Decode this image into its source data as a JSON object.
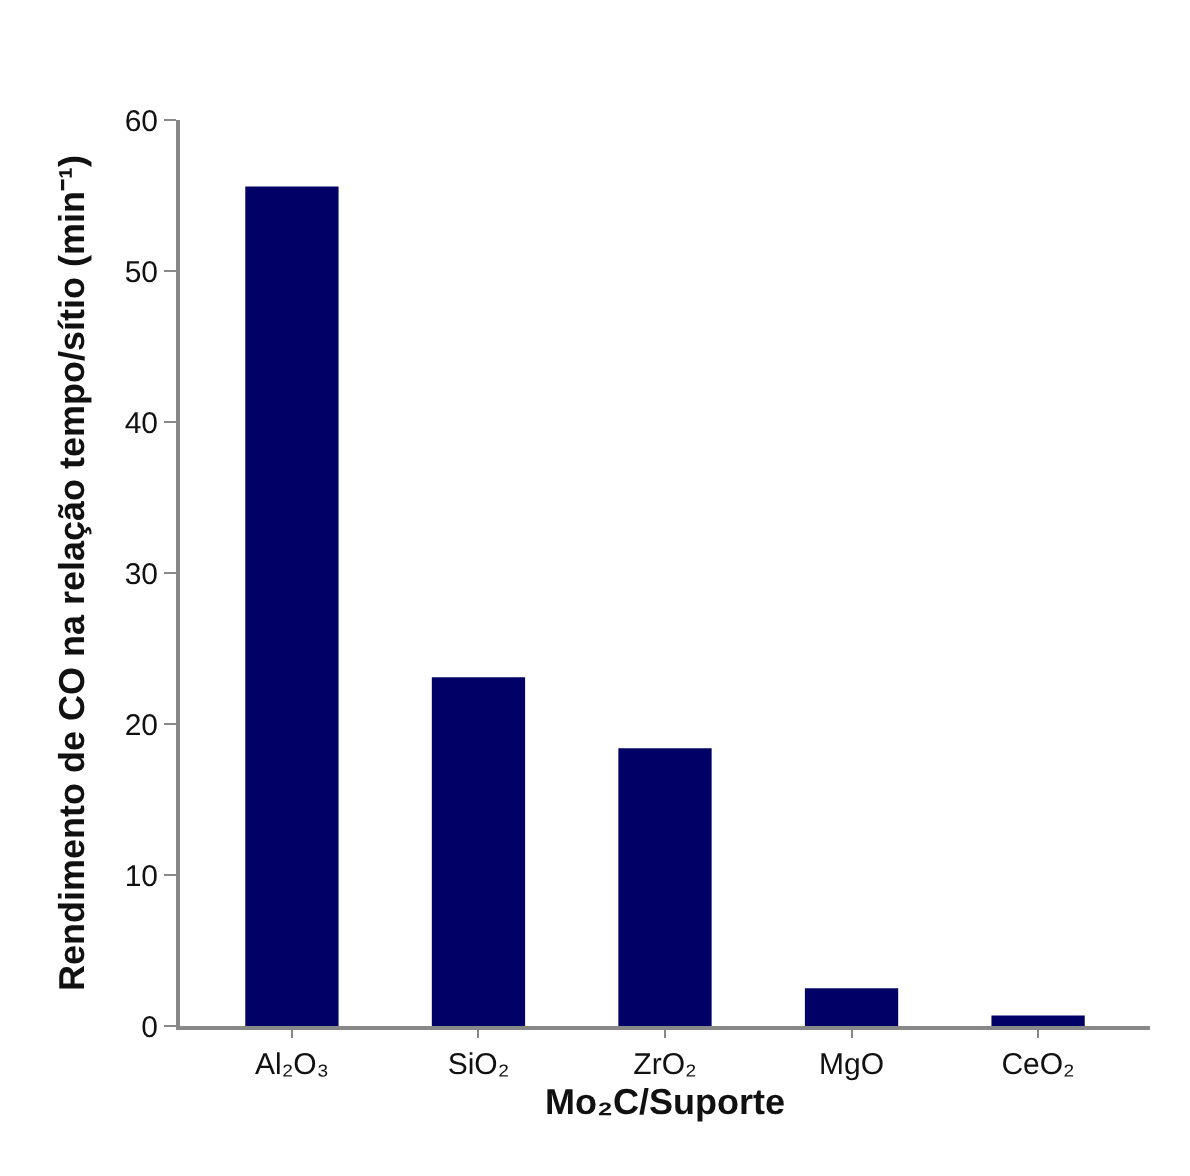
{
  "chart_data": {
    "type": "bar",
    "xlabel": "Mo₂C/Suporte",
    "ylabel": "Rendimento de CO na relação tempo/sítio (min⁻¹)",
    "categories": [
      "Al₂O₃",
      "SiO₂",
      "ZrO₂",
      "MgO",
      "CeO₂"
    ],
    "values": [
      55.6,
      23.1,
      18.4,
      2.5,
      0.7
    ],
    "color": "#000066",
    "ylim": [
      0,
      60
    ],
    "yticks": [
      0,
      10,
      20,
      30,
      40,
      50,
      60
    ]
  }
}
